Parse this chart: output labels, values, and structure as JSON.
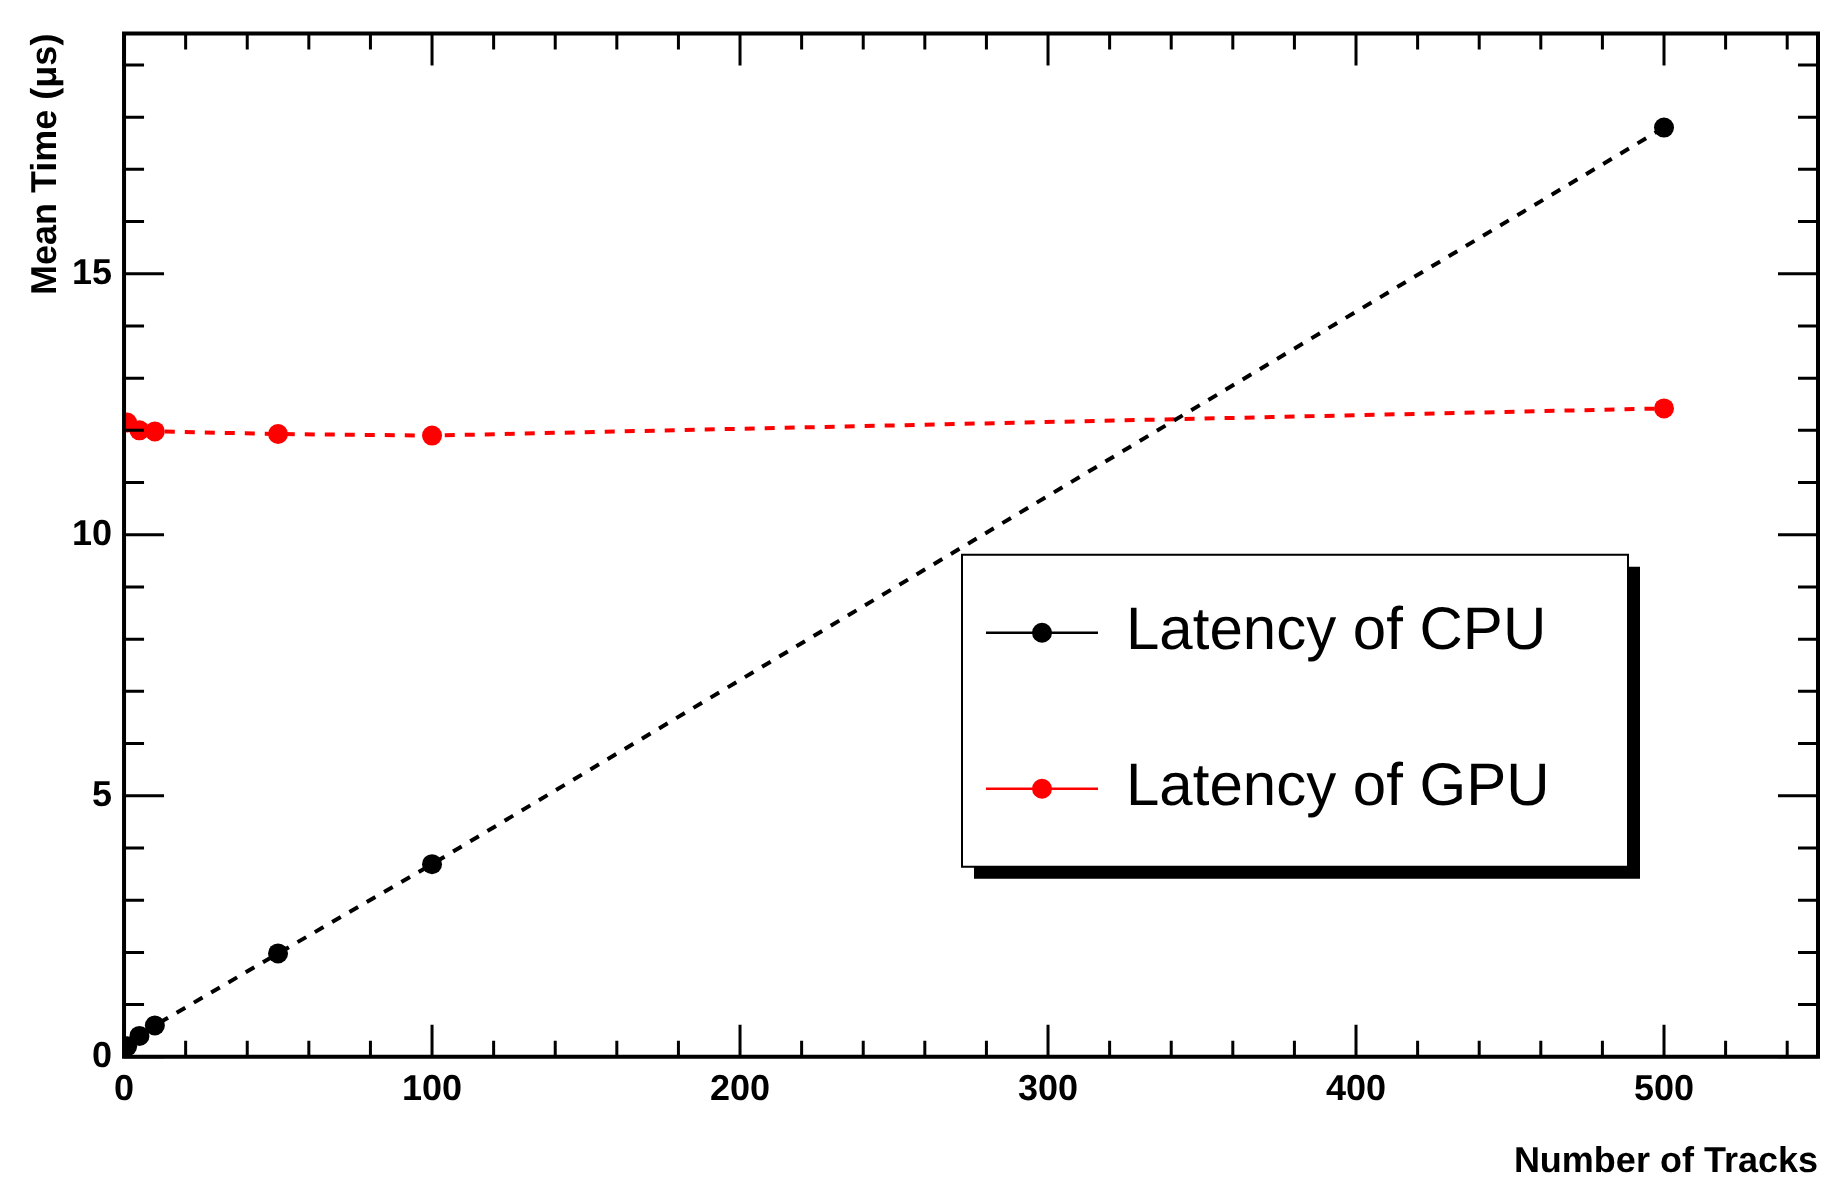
{
  "chart_data": {
    "type": "line",
    "xlabel": "Number of Tracks",
    "ylabel": "Mean Time (μs)",
    "x": [
      1,
      5,
      10,
      50,
      100,
      500
    ],
    "series": [
      {
        "name": "Latency of CPU",
        "color": "#000000",
        "values": [
          0.2,
          0.4,
          0.6,
          1.98,
          3.69,
          17.8
        ]
      },
      {
        "name": "Latency of GPU",
        "color": "#ff0000",
        "values": [
          12.15,
          12.0,
          11.98,
          11.93,
          11.9,
          12.42
        ]
      }
    ],
    "xlim": [
      0,
      550
    ],
    "xticks": [
      0,
      {
        "value": 20,
        "label": null
      },
      {
        "value": 40,
        "label": null
      },
      {
        "value": 60,
        "label": null
      },
      {
        "value": 80,
        "label": null
      },
      100,
      {
        "value": 120,
        "label": null
      },
      {
        "value": 140,
        "label": null
      },
      {
        "value": 160,
        "label": null
      },
      {
        "value": 180,
        "label": null
      },
      200,
      {
        "value": 220,
        "label": null
      },
      {
        "value": 240,
        "label": null
      },
      {
        "value": 260,
        "label": null
      },
      {
        "value": 280,
        "label": null
      },
      300,
      {
        "value": 320,
        "label": null
      },
      {
        "value": 340,
        "label": null
      },
      {
        "value": 360,
        "label": null
      },
      {
        "value": 380,
        "label": null
      },
      400,
      {
        "value": 420,
        "label": null
      },
      {
        "value": 440,
        "label": null
      },
      {
        "value": 460,
        "label": null
      },
      {
        "value": 480,
        "label": null
      },
      500,
      {
        "value": 520,
        "label": null
      },
      {
        "value": 540,
        "label": null
      }
    ],
    "ylim": [
      0,
      19.6
    ],
    "yticks": [
      0,
      {
        "value": 1,
        "label": null
      },
      {
        "value": 2,
        "label": null
      },
      {
        "value": 3,
        "label": null
      },
      {
        "value": 4,
        "label": null
      },
      5,
      {
        "value": 6,
        "label": null
      },
      {
        "value": 7,
        "label": null
      },
      {
        "value": 8,
        "label": null
      },
      {
        "value": 9,
        "label": null
      },
      10,
      {
        "value": 11,
        "label": null
      },
      {
        "value": 12,
        "label": null
      },
      {
        "value": 13,
        "label": null
      },
      {
        "value": 14,
        "label": null
      },
      15,
      {
        "value": 16,
        "label": null
      },
      {
        "value": 17,
        "label": null
      },
      {
        "value": 18,
        "label": null
      },
      {
        "value": 19,
        "label": null
      }
    ],
    "marker": "circle",
    "line_style": "dashed",
    "grid": false,
    "legend": "bottom right"
  }
}
